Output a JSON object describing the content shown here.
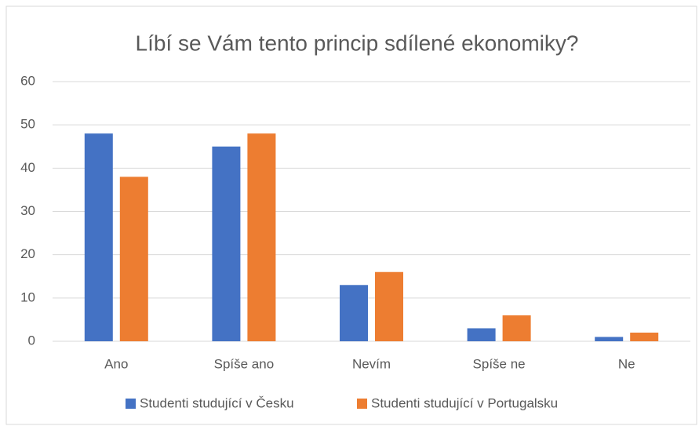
{
  "chart_data": {
    "type": "bar",
    "title": "Líbí se Vám tento princip sdílené ekonomiky?",
    "categories": [
      "Ano",
      "Spíše ano",
      "Nevím",
      "Spíše ne",
      "Ne"
    ],
    "series": [
      {
        "name": "Studenti studující v Česku",
        "color": "#4472c4",
        "values": [
          48,
          45,
          13,
          3,
          1
        ]
      },
      {
        "name": "Studenti studující v Portugalsku",
        "color": "#ed7d31",
        "values": [
          38,
          48,
          16,
          6,
          2
        ]
      }
    ],
    "ylim": [
      0,
      60
    ],
    "yticks": [
      0,
      10,
      20,
      30,
      40,
      50,
      60
    ],
    "grid": true,
    "legend": "bottom"
  }
}
